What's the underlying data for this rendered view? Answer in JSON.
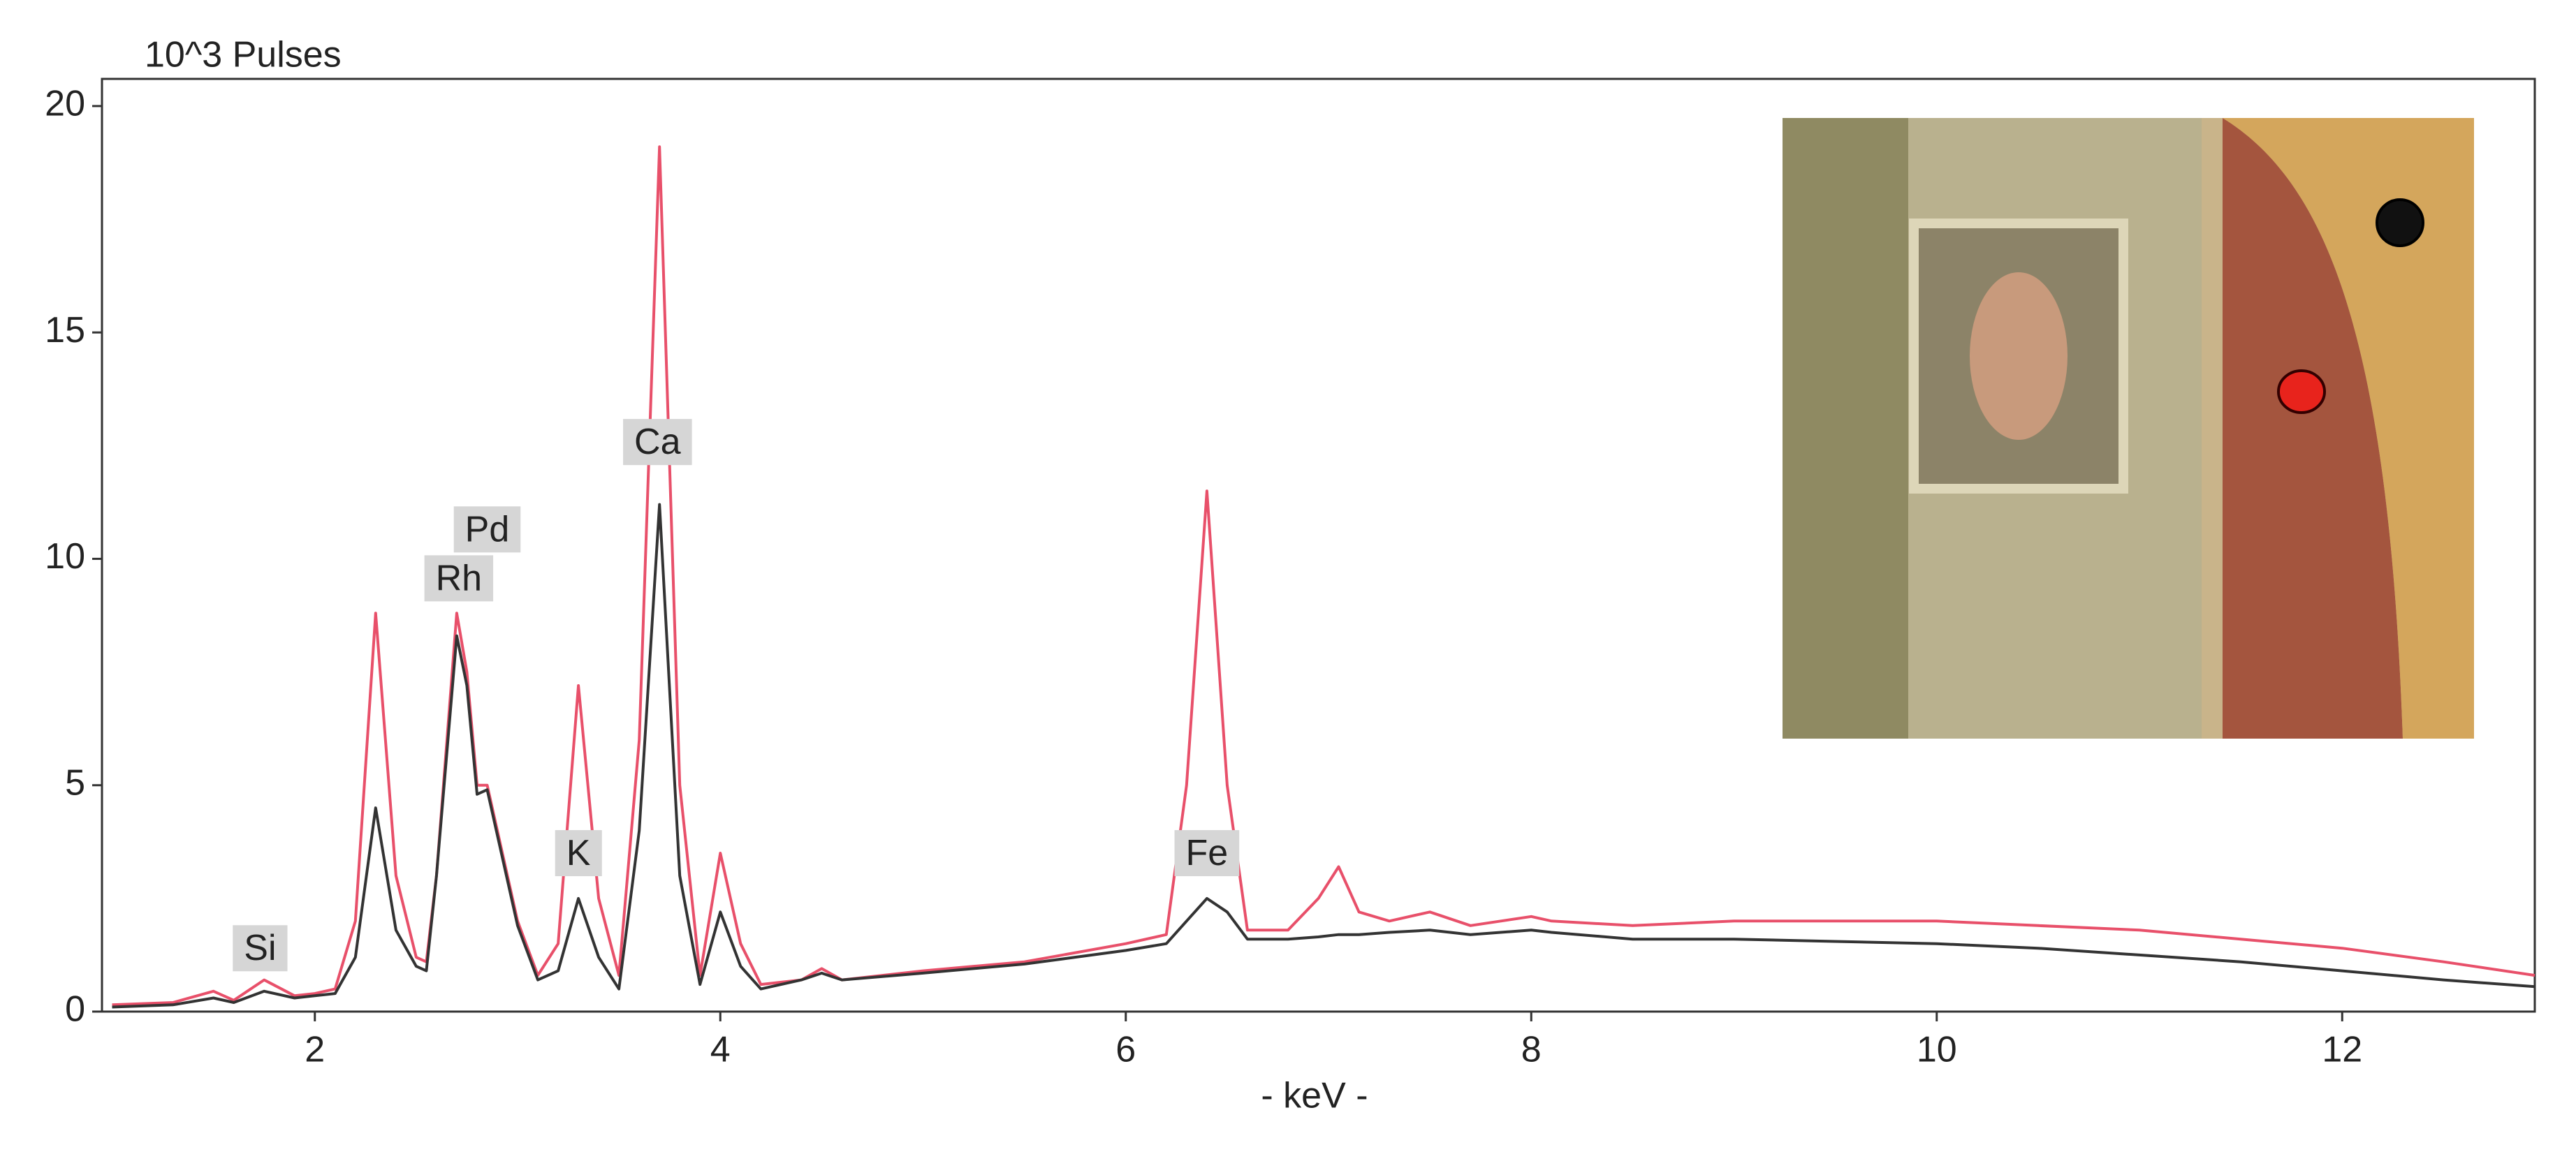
{
  "chart_data": {
    "type": "line",
    "ylabel": "10^3 Pulses",
    "xlabel": "- keV -",
    "x": [
      1.0,
      1.3,
      1.5,
      1.6,
      1.75,
      1.9,
      2.0,
      2.1,
      2.2,
      2.3,
      2.4,
      2.5,
      2.55,
      2.6,
      2.7,
      2.75,
      2.8,
      2.85,
      2.9,
      3.0,
      3.1,
      3.2,
      3.3,
      3.4,
      3.5,
      3.6,
      3.7,
      3.8,
      3.9,
      4.0,
      4.1,
      4.2,
      4.4,
      4.5,
      4.6,
      5.0,
      5.5,
      6.0,
      6.2,
      6.3,
      6.4,
      6.5,
      6.6,
      6.8,
      6.95,
      7.05,
      7.15,
      7.3,
      7.5,
      7.7,
      8.0,
      8.1,
      8.5,
      9.0,
      9.5,
      10.0,
      10.5,
      11.0,
      11.5,
      12.0,
      12.5,
      12.95
    ],
    "series": [
      {
        "color": "#e8506a",
        "values": [
          0.15,
          0.2,
          0.45,
          0.25,
          0.7,
          0.35,
          0.4,
          0.5,
          2.0,
          8.8,
          3.0,
          1.2,
          1.1,
          3.0,
          8.8,
          7.5,
          5.0,
          5.0,
          4.0,
          2.0,
          0.8,
          1.5,
          7.2,
          2.5,
          0.8,
          6.0,
          19.1,
          5.0,
          0.8,
          3.5,
          1.5,
          0.6,
          0.7,
          0.95,
          0.7,
          0.9,
          1.1,
          1.5,
          1.7,
          5.0,
          11.5,
          5.0,
          1.8,
          1.8,
          2.5,
          3.2,
          2.2,
          2.0,
          2.2,
          1.9,
          2.1,
          2.0,
          1.9,
          2.0,
          2.0,
          2.0,
          1.9,
          1.8,
          1.6,
          1.4,
          1.1,
          0.8
        ]
      },
      {
        "color": "#333333",
        "values": [
          0.1,
          0.15,
          0.3,
          0.2,
          0.45,
          0.3,
          0.35,
          0.4,
          1.2,
          4.5,
          1.8,
          1.0,
          0.9,
          3.0,
          8.3,
          7.2,
          4.8,
          4.9,
          3.9,
          1.9,
          0.7,
          0.9,
          2.5,
          1.2,
          0.5,
          4.0,
          11.2,
          3.0,
          0.6,
          2.2,
          1.0,
          0.5,
          0.7,
          0.85,
          0.7,
          0.85,
          1.05,
          1.35,
          1.5,
          2.0,
          2.5,
          2.2,
          1.6,
          1.6,
          1.65,
          1.7,
          1.7,
          1.75,
          1.8,
          1.7,
          1.8,
          1.75,
          1.6,
          1.6,
          1.55,
          1.5,
          1.4,
          1.25,
          1.1,
          0.9,
          0.7,
          0.55
        ]
      }
    ],
    "annotations": [
      {
        "text": "Si",
        "x": 1.73,
        "y": 1.38
      },
      {
        "text": "Rh",
        "x": 2.71,
        "y": 9.55
      },
      {
        "text": "Pd",
        "x": 2.85,
        "y": 10.63
      },
      {
        "text": "Ca",
        "x": 3.69,
        "y": 12.56
      },
      {
        "text": "K",
        "x": 3.3,
        "y": 3.48
      },
      {
        "text": "Fe",
        "x": 6.4,
        "y": 3.48
      }
    ],
    "xlim": [
      0.95,
      12.95
    ],
    "xticks": [
      2,
      4,
      6,
      8,
      10,
      12
    ],
    "ylim": [
      0,
      20.6
    ],
    "yticks": [
      0,
      5,
      10,
      15,
      20
    ]
  }
}
